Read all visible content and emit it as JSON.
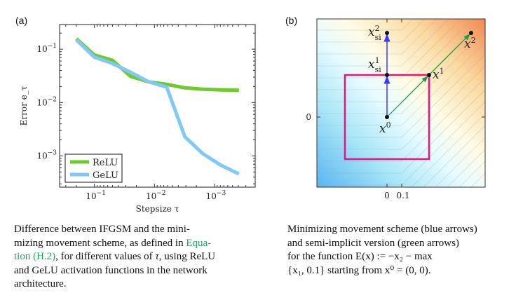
{
  "panel_a": {
    "label": "(a)",
    "chart_data": {
      "type": "line",
      "xlabel": "Stepsize τ",
      "ylabel": "Error e_τ",
      "x_scale": "log",
      "x_reversed": true,
      "y_scale": "log",
      "xlim": [
        0.38,
        0.00021
      ],
      "ylim": [
        0.00026,
        0.29
      ],
      "x_ticks": [
        0.1,
        0.01,
        0.001
      ],
      "x_tick_labels": [
        "10^-1",
        "10^-2",
        "10^-3"
      ],
      "y_ticks": [
        0.1,
        0.01,
        0.001
      ],
      "y_tick_labels": [
        "10^-1",
        "10^-2",
        "10^-3"
      ],
      "legend_position": "bottom-left",
      "grid": false,
      "x": [
        0.2,
        0.1,
        0.05,
        0.025,
        0.0125,
        0.00625,
        0.003125,
        0.0015625,
        0.00078125,
        0.000390625
      ],
      "series": [
        {
          "name": "ReLU",
          "color": "#6ecb2e",
          "values": [
            0.157,
            0.078,
            0.062,
            0.031,
            0.0245,
            0.022,
            0.0189,
            0.0178,
            0.0173,
            0.017
          ]
        },
        {
          "name": "GeLU",
          "color": "#80c8f5",
          "values": [
            0.15,
            0.071,
            0.054,
            0.037,
            0.0245,
            0.0195,
            0.0023,
            0.0011,
            0.00067,
            0.00046
          ]
        }
      ]
    },
    "caption": {
      "lines": [
        "Difference between IFGSM and the mini-",
        "mizing movement scheme, as defined in ",
        ", for different values of ",
        ", using ReLU",
        "and GeLU activation functions in the network",
        "architecture."
      ],
      "link_part1": "Equa-",
      "link_part2": "tion (H.2)",
      "tau": "τ",
      "link_color": "#1aa85a"
    }
  },
  "panel_b": {
    "label": "(b)",
    "x_tick_labels": [
      "0",
      "0.1"
    ],
    "y_tick_labels": [
      "0"
    ],
    "points": {
      "x0": "x",
      "x0_sup": "0",
      "x1": "x",
      "x1_sup": "1",
      "x2": "x",
      "x2_sup": "2",
      "xsi1": "x",
      "xsi1_sub": "si",
      "xsi1_sup": "1",
      "xsi2": "x",
      "xsi2_sub": "si",
      "xsi2_sup": "2"
    },
    "colors": {
      "blue_arrows": "#3a3aff",
      "green_arrows": "#1a9a4a",
      "box": "#e8147a",
      "high": "#f28a50",
      "low": "#5ab4f0"
    },
    "caption": {
      "lines": [
        "Minimizing movement scheme (blue arrows)",
        "and semi-implicit version (green arrows)",
        "for the function E(x)  :=  −x₂ − max",
        "{x₁, 0.1} starting from x⁰ = (0, 0)."
      ]
    }
  }
}
